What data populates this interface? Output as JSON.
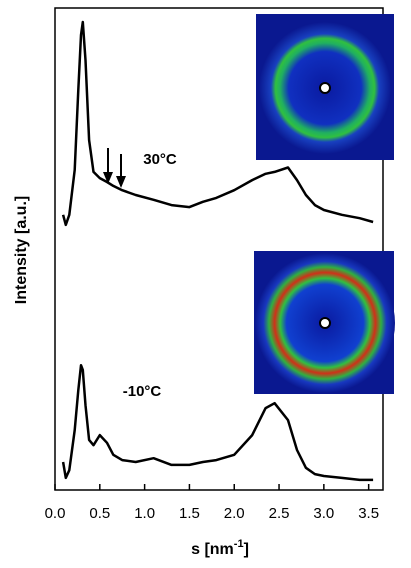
{
  "chart_data": {
    "type": "line",
    "xlabel": "s [nm",
    "xlabel_superscript": "-1",
    "xlabel_suffix": "]",
    "ylabel": "Intensity [a.u.]",
    "x": [
      0.09,
      0.12,
      0.16,
      0.22,
      0.26,
      0.29,
      0.31,
      0.34,
      0.38,
      0.43,
      0.5,
      0.58,
      0.65,
      0.75,
      0.9,
      1.1,
      1.3,
      1.5,
      1.65,
      1.8,
      2.0,
      2.2,
      2.35,
      2.45,
      2.6,
      2.7,
      2.8,
      2.9,
      3.0,
      3.2,
      3.4,
      3.55
    ],
    "series": [
      {
        "name": "30°C",
        "color": "#000000",
        "values": [
          57.1,
          55.0,
          57.1,
          66.4,
          83.0,
          94.4,
          97.1,
          89.2,
          72.6,
          66.0,
          64.7,
          63.9,
          63.1,
          62.2,
          61.2,
          60.2,
          59.1,
          58.7,
          59.8,
          60.6,
          62.2,
          64.3,
          65.6,
          66.0,
          66.9,
          64.3,
          61.2,
          59.1,
          58.1,
          57.1,
          56.4,
          55.6
        ]
      },
      {
        "name": "-10°C",
        "color": "#000000",
        "values": [
          5.8,
          2.5,
          4.1,
          12.4,
          20.7,
          25.9,
          24.9,
          17.6,
          10.4,
          9.3,
          11.4,
          9.8,
          7.3,
          6.2,
          5.8,
          6.6,
          5.2,
          5.2,
          5.8,
          6.2,
          7.3,
          11.4,
          17.0,
          18.0,
          14.5,
          8.3,
          4.6,
          3.3,
          2.9,
          2.5,
          2.1,
          2.1
        ]
      }
    ],
    "xlim": [
      0,
      3.66
    ],
    "ylim": [
      0,
      100
    ],
    "xticks": [
      {
        "value": 0,
        "label": "0.0"
      },
      {
        "value": 0.5,
        "label": "0.5"
      },
      {
        "value": 1,
        "label": "1.0"
      },
      {
        "value": 1.5,
        "label": "1.5"
      },
      {
        "value": 2,
        "label": "2.0"
      },
      {
        "value": 2.5,
        "label": "2.5"
      },
      {
        "value": 3,
        "label": "3.0"
      },
      {
        "value": 3.5,
        "label": "3.5"
      }
    ]
  }
}
